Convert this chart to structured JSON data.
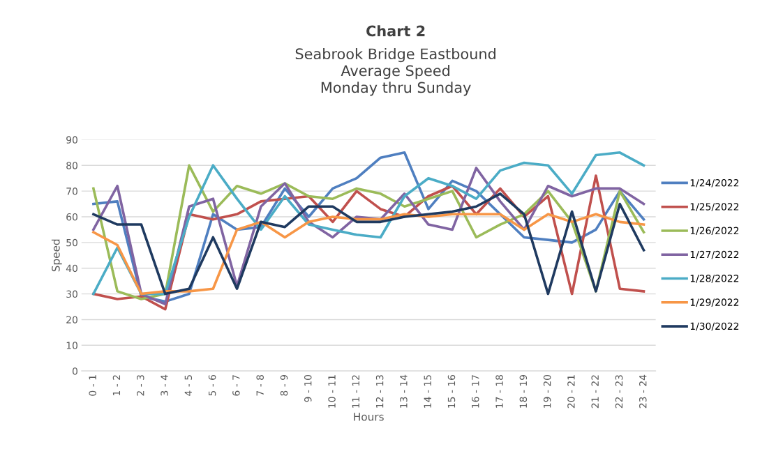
{
  "chart_data": {
    "type": "line",
    "title": "Chart 2",
    "subtitle": "Seabrook Bridge Eastbound\nAverage Speed\nMonday thru Sunday",
    "xlabel": "Hours",
    "ylabel": "Speed",
    "categories": [
      "0 - 1",
      "1 - 2",
      "2 - 3",
      "3 - 4",
      "4 - 5",
      "5 - 6",
      "6 - 7",
      "7 - 8",
      "8 - 9",
      "9 - 10",
      "10 - 11",
      "11 - 12",
      "12 - 13",
      "13 - 14",
      "14 - 15",
      "15 - 16",
      "16 - 17",
      "17 - 18",
      "18 - 19",
      "19 - 20",
      "20 - 21",
      "21 - 22",
      "22 - 23",
      "23 - 24"
    ],
    "ylim": [
      0,
      90
    ],
    "yticks": [
      0,
      10,
      20,
      30,
      40,
      50,
      60,
      70,
      80,
      90
    ],
    "grid": "y",
    "legend": "right",
    "marker": "none",
    "line_style": "solid",
    "series": [
      {
        "name": "1/24/2022",
        "color": "#4f7fc0",
        "values": [
          65,
          66,
          29,
          27,
          30,
          61,
          55,
          56,
          71,
          60,
          71,
          75,
          83,
          85,
          63,
          74,
          70,
          61,
          52,
          51,
          50,
          55,
          70,
          59
        ]
      },
      {
        "name": "1/25/2022",
        "color": "#c0504d",
        "values": [
          30,
          28,
          29,
          24,
          61,
          59,
          61,
          66,
          67,
          68,
          58,
          70,
          63,
          60,
          68,
          72,
          61,
          71,
          60,
          68,
          30,
          76,
          32,
          31
        ]
      },
      {
        "name": "1/26/2022",
        "color": "#9bbb59",
        "values": [
          71,
          31,
          28,
          30,
          80,
          62,
          72,
          69,
          73,
          68,
          67,
          71,
          69,
          64,
          67,
          70,
          52,
          57,
          61,
          70,
          58,
          31,
          70,
          54
        ]
      },
      {
        "name": "1/27/2022",
        "color": "#8064a2",
        "values": [
          55,
          72,
          30,
          26,
          64,
          67,
          33,
          64,
          73,
          58,
          52,
          60,
          59,
          69,
          57,
          55,
          79,
          66,
          55,
          72,
          68,
          71,
          71,
          65
        ]
      },
      {
        "name": "1/28/2022",
        "color": "#4bacc6",
        "values": [
          30,
          48,
          30,
          30,
          60,
          80,
          67,
          55,
          68,
          57,
          55,
          53,
          52,
          68,
          75,
          72,
          67,
          78,
          81,
          80,
          69,
          84,
          85,
          80
        ]
      },
      {
        "name": "1/29/2022",
        "color": "#f79646",
        "values": [
          54,
          49,
          30,
          31,
          31,
          32,
          55,
          58,
          52,
          58,
          60,
          59,
          59,
          61,
          60,
          61,
          61,
          61,
          55,
          61,
          58,
          61,
          58,
          57
        ]
      },
      {
        "name": "1/30/2022",
        "color": "#1f3a60",
        "values": [
          61,
          57,
          57,
          30,
          32,
          52,
          32,
          58,
          56,
          64,
          64,
          58,
          58,
          60,
          61,
          62,
          64,
          69,
          61,
          30,
          62,
          31,
          65,
          47
        ]
      }
    ]
  }
}
